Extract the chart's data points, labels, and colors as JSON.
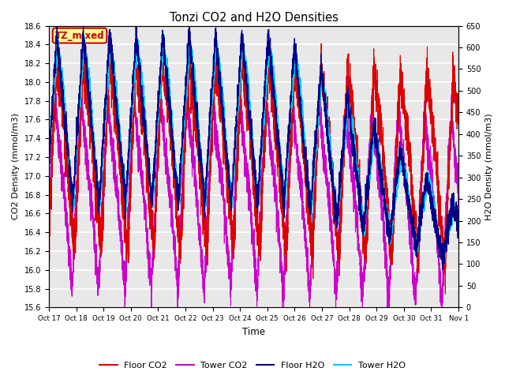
{
  "title": "Tonzi CO2 and H2O Densities",
  "xlabel": "Time",
  "ylabel_left": "CO2 Density (mmol/m3)",
  "ylabel_right": "H2O Density (mmol/m3)",
  "ylim_left": [
    15.6,
    18.6
  ],
  "ylim_right": [
    0,
    650
  ],
  "yticks_left": [
    15.6,
    15.8,
    16.0,
    16.2,
    16.4,
    16.6,
    16.8,
    17.0,
    17.2,
    17.4,
    17.6,
    17.8,
    18.0,
    18.2,
    18.4,
    18.6
  ],
  "yticks_right": [
    0,
    50,
    100,
    150,
    200,
    250,
    300,
    350,
    400,
    450,
    500,
    550,
    600,
    650
  ],
  "xtick_labels": [
    "Oct 17",
    "Oct 18",
    "Oct 19",
    "Oct 20",
    "Oct 21",
    "Oct 22",
    "Oct 23",
    "Oct 24",
    "Oct 25",
    "Oct 26",
    "Oct 27",
    "Oct 28",
    "Oct 29",
    "Oct 30",
    "Oct 31",
    "Nov 1"
  ],
  "color_floor_co2": "#dd0000",
  "color_tower_co2": "#cc00cc",
  "color_floor_h2o": "#000088",
  "color_tower_h2o": "#00ccee",
  "annotation_text": "TZ_mixed",
  "annotation_color": "#cc0000",
  "annotation_bg": "#ffff99",
  "legend_labels": [
    "Floor CO2",
    "Tower CO2",
    "Floor H2O",
    "Tower H2O"
  ],
  "n_points": 4800,
  "n_days": 15.5,
  "background_color": "#e8e8e8"
}
